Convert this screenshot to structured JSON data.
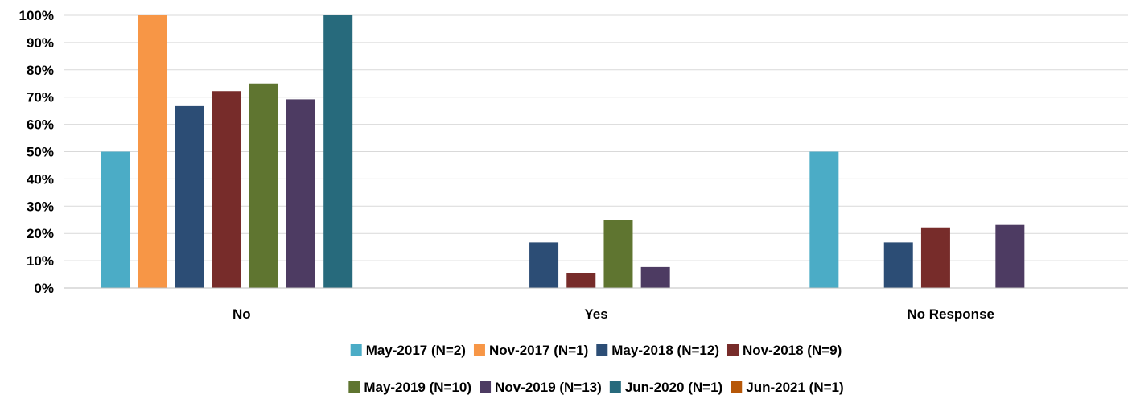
{
  "chart_data": {
    "type": "bar",
    "categories": [
      "No",
      "Yes",
      "No Response"
    ],
    "ylim": [
      0,
      100
    ],
    "yticks": [
      "0%",
      "10%",
      "20%",
      "30%",
      "40%",
      "50%",
      "60%",
      "70%",
      "80%",
      "90%",
      "100%"
    ],
    "ytick_values": [
      0,
      10,
      20,
      30,
      40,
      50,
      60,
      70,
      80,
      90,
      100
    ],
    "grid": true,
    "legend_position": "bottom",
    "series": [
      {
        "name": "May-2017 (N=2)",
        "color": "#4BACC6",
        "values": [
          50,
          0,
          50
        ]
      },
      {
        "name": "Nov-2017 (N=1)",
        "color": "#F79646",
        "values": [
          100,
          0,
          0
        ]
      },
      {
        "name": "May-2018 (N=12)",
        "color": "#2C4D75",
        "values": [
          66.7,
          16.7,
          16.7
        ]
      },
      {
        "name": "Nov-2018 (N=9)",
        "color": "#772C2A",
        "values": [
          72.2,
          5.6,
          22.2
        ]
      },
      {
        "name": "May-2019 (N=10)",
        "color": "#5F7530",
        "values": [
          75,
          25,
          0
        ]
      },
      {
        "name": "Nov-2019 (N=13)",
        "color": "#4D3B62",
        "values": [
          69.2,
          7.7,
          23.1
        ]
      },
      {
        "name": "Jun-2020 (N=1)",
        "color": "#276A7C",
        "values": [
          100,
          0,
          0
        ]
      },
      {
        "name": "Jun-2021 (N=1)",
        "color": "#B65708",
        "values": [
          0,
          0,
          0
        ]
      }
    ]
  }
}
